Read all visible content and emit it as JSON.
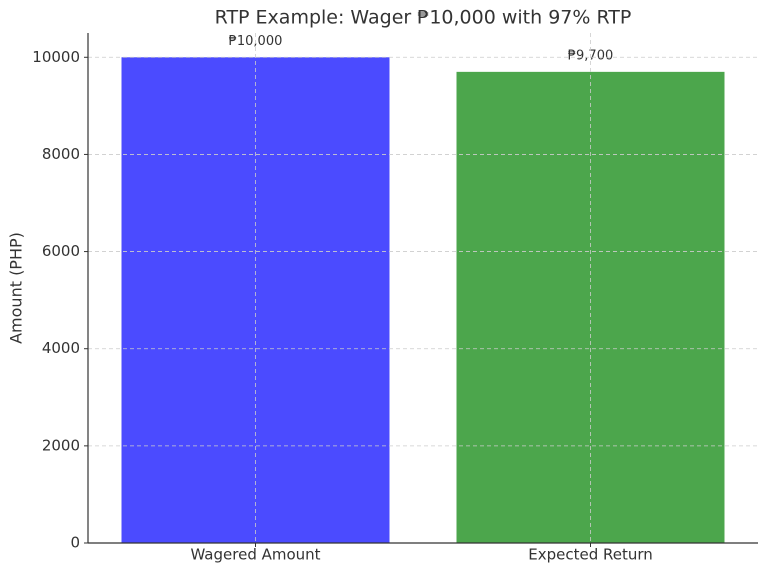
{
  "chart_data": {
    "type": "bar",
    "title": "RTP Example: Wager ₱10,000 with 97% RTP",
    "y_label": "Amount (PHP)",
    "categories": [
      "Wagered Amount",
      "Expected Return"
    ],
    "values": [
      10000,
      9700
    ],
    "value_labels": [
      "₱10,000",
      "₱9,700"
    ],
    "colors": [
      "#4b4bff",
      "#4ca64c"
    ],
    "ylim": [
      0,
      10500
    ],
    "yticks": [
      0,
      2000,
      4000,
      6000,
      8000,
      10000
    ],
    "grid": true
  }
}
